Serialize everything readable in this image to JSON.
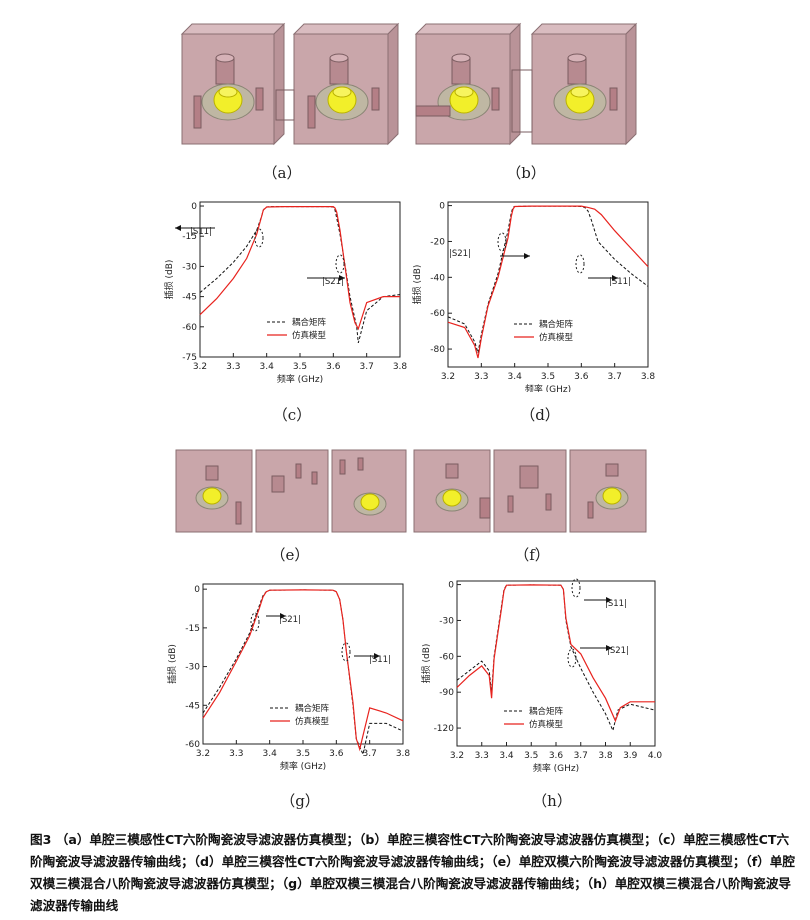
{
  "sublabels": {
    "a": "（a）",
    "b": "（b）",
    "c": "（c）",
    "d": "（d）",
    "e": "（e）",
    "f": "（f）",
    "g": "（g）",
    "h": "（h）"
  },
  "caption": "图3 （a）单腔三模感性CT六阶陶瓷波导滤波器仿真模型；（b）单腔三模容性CT六阶陶瓷波导滤波器仿真模型；（c）单腔三模感性CT六阶陶瓷波导滤波器传输曲线；（d）单腔三模容性CT六阶陶瓷波导滤波器传输曲线；（e）单腔双模六阶陶瓷波导滤波器仿真模型；（f）单腔双模三模混合八阶陶瓷波导滤波器仿真模型；（g）单腔双模三模混合八阶陶瓷波导滤波器传输曲线；（h）单腔双模三模混合八阶陶瓷波导滤波器传输曲线",
  "colors": {
    "cavity": "#c9a6aa",
    "resonator_yellow": "#f2ef2a",
    "sim": "#e8231e",
    "matrix": "#111111"
  },
  "chart_data": [
    {
      "id": "c",
      "type": "line",
      "xlabel": "频率 (GHz)",
      "ylabel": "插损 (dB)",
      "xlim": [
        3.2,
        3.8
      ],
      "ylim": [
        -75,
        2
      ],
      "xticks": [
        3.2,
        3.3,
        3.4,
        3.5,
        3.6,
        3.7,
        3.8
      ],
      "xticklabels": [
        "3.2",
        "3.3",
        "3.4",
        "3.5",
        "3.6",
        "3.7",
        "3.8"
      ],
      "yticks": [
        0,
        -15,
        -30,
        -45,
        -60,
        -75
      ],
      "yticklabels": [
        "0",
        "-15",
        "-30",
        "-45",
        "-60",
        "-75"
      ],
      "legend": [
        "耦合矩阵",
        "仿真模型"
      ],
      "legend_position": "bottom-right",
      "annotations": [
        "|S11|",
        "|S21|"
      ],
      "series": [
        {
          "name": "耦合矩阵",
          "style": "dashed",
          "x": [
            3.2,
            3.25,
            3.3,
            3.34,
            3.37,
            3.385,
            3.39,
            3.395,
            3.4,
            3.41,
            3.42,
            3.43,
            3.44,
            3.45,
            3.46,
            3.47,
            3.48,
            3.49,
            3.5,
            3.52,
            3.55,
            3.58,
            3.6,
            3.605,
            3.61,
            3.62,
            3.63,
            3.65,
            3.67,
            3.675,
            3.7,
            3.75,
            3.8
          ],
          "y": [
            -43,
            -36,
            -28,
            -20,
            -12,
            -5,
            -2,
            -1,
            -0.5,
            -0.3,
            -0.3,
            -0.3,
            -0.3,
            -0.3,
            -0.3,
            -0.3,
            -0.3,
            -0.3,
            -0.3,
            -0.3,
            -0.3,
            -0.3,
            -0.5,
            -2,
            -6,
            -14,
            -24,
            -45,
            -60,
            -68,
            -52,
            -45,
            -44
          ]
        },
        {
          "name": "仿真模型",
          "style": "solid",
          "x": [
            3.2,
            3.25,
            3.3,
            3.34,
            3.37,
            3.385,
            3.39,
            3.4,
            3.45,
            3.5,
            3.55,
            3.6,
            3.605,
            3.61,
            3.62,
            3.63,
            3.64,
            3.65,
            3.665,
            3.675,
            3.7,
            3.75,
            3.8
          ],
          "y": [
            -54,
            -46,
            -36,
            -26,
            -14,
            -5,
            -2,
            -0.5,
            -0.3,
            -0.3,
            -0.3,
            -0.3,
            -1,
            -3,
            -12,
            -24,
            -36,
            -48,
            -58,
            -61,
            -48,
            -45,
            -45
          ]
        }
      ]
    },
    {
      "id": "d",
      "type": "line",
      "xlabel": "频率 (GHz)",
      "ylabel": "插损 (dB)",
      "xlim": [
        3.2,
        3.8
      ],
      "ylim": [
        -90,
        2
      ],
      "xticks": [
        3.2,
        3.3,
        3.4,
        3.5,
        3.6,
        3.7,
        3.8
      ],
      "xticklabels": [
        "3.2",
        "3.3",
        "3.4",
        "3.5",
        "3.6",
        "3.7",
        "3.8"
      ],
      "yticks": [
        0,
        -20,
        -40,
        -60,
        -80
      ],
      "yticklabels": [
        "0",
        "-20",
        "-40",
        "-60",
        "-80"
      ],
      "legend": [
        "耦合矩阵",
        "仿真模型"
      ],
      "legend_position": "bottom-right",
      "annotations": [
        "|S21|",
        "|S11|"
      ],
      "series": [
        {
          "name": "耦合矩阵",
          "style": "dashed",
          "x": [
            3.2,
            3.25,
            3.28,
            3.29,
            3.3,
            3.32,
            3.35,
            3.38,
            3.39,
            3.395,
            3.4,
            3.45,
            3.5,
            3.55,
            3.6,
            3.61,
            3.62,
            3.63,
            3.65,
            3.7,
            3.75,
            3.8
          ],
          "y": [
            -62,
            -66,
            -76,
            -82,
            -72,
            -55,
            -38,
            -14,
            -4,
            -1,
            -0.5,
            -0.3,
            -0.3,
            -0.3,
            -0.5,
            -1,
            -3,
            -8,
            -20,
            -30,
            -38,
            -45
          ]
        },
        {
          "name": "仿真模型",
          "style": "solid",
          "x": [
            3.2,
            3.25,
            3.28,
            3.29,
            3.3,
            3.32,
            3.35,
            3.38,
            3.39,
            3.395,
            3.4,
            3.45,
            3.5,
            3.55,
            3.6,
            3.62,
            3.64,
            3.66,
            3.7,
            3.75,
            3.8
          ],
          "y": [
            -65,
            -68,
            -78,
            -85,
            -74,
            -56,
            -40,
            -18,
            -6,
            -2,
            -0.5,
            -0.3,
            -0.3,
            -0.3,
            -0.3,
            -1,
            -2,
            -5,
            -14,
            -24,
            -34
          ]
        }
      ]
    },
    {
      "id": "g",
      "type": "line",
      "xlabel": "频率 (GHz)",
      "ylabel": "插损 (dB)",
      "xlim": [
        3.2,
        3.8
      ],
      "ylim": [
        -60,
        2
      ],
      "xticks": [
        3.2,
        3.3,
        3.4,
        3.5,
        3.6,
        3.7,
        3.8
      ],
      "xticklabels": [
        "3.2",
        "3.3",
        "3.4",
        "3.5",
        "3.6",
        "3.7",
        "3.8"
      ],
      "yticks": [
        0,
        -15,
        -30,
        -45,
        -60
      ],
      "yticklabels": [
        "0",
        "-15",
        "-30",
        "-45",
        "-60"
      ],
      "legend": [
        "耦合矩阵",
        "仿真模型"
      ],
      "legend_position": "bottom-right",
      "annotations": [
        "|S21|",
        "|S11|"
      ],
      "series": [
        {
          "name": "耦合矩阵",
          "style": "dashed",
          "x": [
            3.2,
            3.25,
            3.3,
            3.34,
            3.37,
            3.38,
            3.39,
            3.4,
            3.5,
            3.59,
            3.6,
            3.61,
            3.62,
            3.63,
            3.65,
            3.66,
            3.68,
            3.7,
            3.75,
            3.8
          ],
          "y": [
            -48,
            -38,
            -27,
            -17,
            -6,
            -2.5,
            -1,
            -0.4,
            -0.3,
            -0.4,
            -1,
            -4,
            -12,
            -24,
            -45,
            -58,
            -64,
            -52,
            -52,
            -55
          ]
        },
        {
          "name": "仿真模型",
          "style": "solid",
          "x": [
            3.2,
            3.25,
            3.3,
            3.34,
            3.37,
            3.38,
            3.39,
            3.4,
            3.5,
            3.59,
            3.6,
            3.61,
            3.62,
            3.63,
            3.65,
            3.66,
            3.67,
            3.7,
            3.75,
            3.8
          ],
          "y": [
            -50,
            -40,
            -28,
            -18,
            -7,
            -3,
            -1,
            -0.4,
            -0.3,
            -0.4,
            -1,
            -4,
            -12,
            -24,
            -44,
            -58,
            -62,
            -46,
            -48,
            -51
          ]
        }
      ]
    },
    {
      "id": "h",
      "type": "line",
      "xlabel": "频率 (GHz)",
      "ylabel": "插损 (dB)",
      "xlim": [
        3.2,
        4.0
      ],
      "ylim": [
        -135,
        3
      ],
      "xticks": [
        3.2,
        3.3,
        3.4,
        3.5,
        3.6,
        3.7,
        3.8,
        3.9,
        4.0
      ],
      "xticklabels": [
        "3.2",
        "3.3",
        "3.4",
        "3.5",
        "3.6",
        "3.7",
        "3.8",
        "3.9",
        "4.0"
      ],
      "yticks": [
        0,
        -30,
        -60,
        -90,
        -120
      ],
      "yticklabels": [
        "0",
        "-30",
        "-60",
        "-90",
        "-120"
      ],
      "legend": [
        "耦合矩阵",
        "仿真模型"
      ],
      "legend_position": "bottom-right",
      "annotations": [
        "|S11|",
        "|S21|"
      ],
      "series": [
        {
          "name": "耦合矩阵",
          "style": "dashed",
          "x": [
            3.2,
            3.25,
            3.3,
            3.33,
            3.34,
            3.35,
            3.38,
            3.39,
            3.4,
            3.5,
            3.62,
            3.63,
            3.64,
            3.66,
            3.7,
            3.75,
            3.8,
            3.83,
            3.85,
            3.9,
            4.0
          ],
          "y": [
            -80,
            -72,
            -64,
            -72,
            -90,
            -60,
            -18,
            -4,
            -0.5,
            -0.3,
            -0.5,
            -4,
            -30,
            -52,
            -70,
            -90,
            -108,
            -122,
            -105,
            -100,
            -105
          ]
        },
        {
          "name": "仿真模型",
          "style": "solid",
          "x": [
            3.2,
            3.25,
            3.3,
            3.33,
            3.34,
            3.35,
            3.38,
            3.39,
            3.4,
            3.5,
            3.62,
            3.63,
            3.64,
            3.66,
            3.7,
            3.75,
            3.8,
            3.84,
            3.86,
            3.9,
            4.0
          ],
          "y": [
            -86,
            -76,
            -68,
            -76,
            -95,
            -62,
            -20,
            -5,
            -0.5,
            -0.3,
            -0.5,
            -4,
            -28,
            -50,
            -58,
            -78,
            -95,
            -114,
            -103,
            -98,
            -98
          ]
        }
      ]
    }
  ]
}
